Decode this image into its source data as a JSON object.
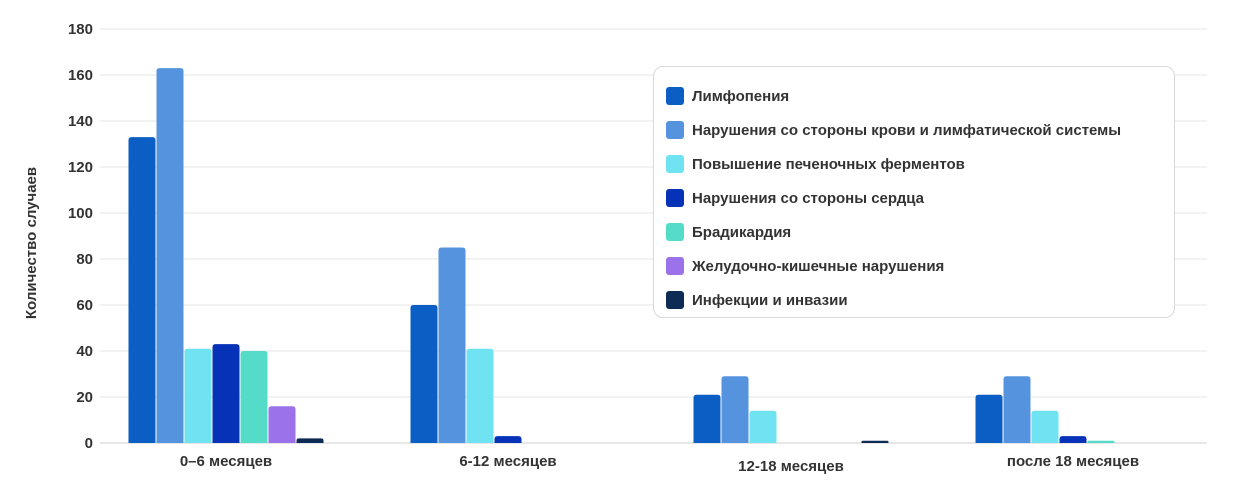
{
  "chart_data": {
    "type": "bar",
    "title": "",
    "xlabel": "",
    "ylabel": "Количество случаев",
    "ylim": [
      0,
      180
    ],
    "yticks": [
      0,
      20,
      40,
      60,
      80,
      100,
      120,
      140,
      160,
      180
    ],
    "grid": true,
    "legend_position": "top-right",
    "categories": [
      "0–6 месяцев",
      "6-12 месяцев",
      "12-18 месяцев",
      "после 18 месяцев"
    ],
    "series": [
      {
        "name": "Лимфопения",
        "color": "#0a5ec4",
        "values": [
          133,
          60,
          21,
          21
        ]
      },
      {
        "name": "Нарушения со стороны крови и лимфатической системы",
        "color": "#5593de",
        "values": [
          163,
          85,
          29,
          29
        ]
      },
      {
        "name": "Повышение печеночных ферментов",
        "color": "#6fe3f2",
        "values": [
          41,
          41,
          14,
          14
        ]
      },
      {
        "name": "Нарушения со стороны сердца",
        "color": "#0632b8",
        "values": [
          43,
          3,
          0,
          3
        ]
      },
      {
        "name": "Брадикардия",
        "color": "#55dcc9",
        "values": [
          40,
          0,
          0,
          1
        ]
      },
      {
        "name": "Желудочно-кишечные нарушения",
        "color": "#9b72ea",
        "values": [
          16,
          0,
          0,
          0
        ]
      },
      {
        "name": "Инфекции и инвазии",
        "color": "#0d2b54",
        "values": [
          2,
          0,
          1,
          0
        ]
      }
    ]
  }
}
